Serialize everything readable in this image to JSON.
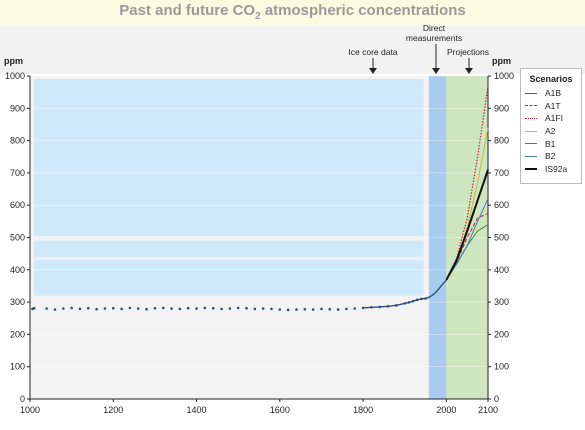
{
  "title": {
    "main": "Past and future CO",
    "sub": "2",
    "rest": " atmospheric concentrations"
  },
  "annotations": {
    "ice_core": "Ice core data",
    "direct_1": "Direct",
    "direct_2": "measurements",
    "projections": "Projections"
  },
  "unit_left": "ppm",
  "unit_right": "ppm",
  "legend": {
    "title": "Scenarios",
    "items": [
      {
        "label": "A1B",
        "color": "#6b5a2a",
        "style": "solid",
        "width": 1
      },
      {
        "label": "A1T",
        "color": "#c1272d",
        "style": "dashed",
        "width": 1
      },
      {
        "label": "A1FI",
        "color": "#c1272d",
        "style": "dotted",
        "width": 1.2
      },
      {
        "label": "A2",
        "color": "#d4b43a",
        "style": "solid",
        "width": 1
      },
      {
        "label": "B1",
        "color": "#3f8a3f",
        "style": "solid",
        "width": 1
      },
      {
        "label": "B2",
        "color": "#4a7ab5",
        "style": "solid",
        "width": 1
      },
      {
        "label": "IS92a",
        "color": "#111111",
        "style": "solid",
        "width": 2
      }
    ]
  },
  "colors": {
    "ice_region": "#cfe9fb",
    "direct_region": "#a9cbef",
    "projection_region": "#cde6bf",
    "observed_points": "#2d4f7c"
  },
  "chart_data": {
    "type": "line",
    "title": "Past and future CO2 atmospheric concentrations",
    "xlabel": "",
    "ylabel": "ppm",
    "xlim": [
      1000,
      2100
    ],
    "ylim": [
      0,
      1000
    ],
    "x_ticks": [
      1000,
      1200,
      1400,
      1600,
      1800,
      2000,
      2100
    ],
    "y_ticks": [
      0,
      100,
      200,
      300,
      400,
      500,
      600,
      700,
      800,
      900,
      1000
    ],
    "regions": [
      {
        "label": "Ice core data",
        "x": [
          1000,
          1955
        ]
      },
      {
        "label": "Direct measurements",
        "x": [
          1958,
          2000
        ]
      },
      {
        "label": "Projections",
        "x": [
          2000,
          2100
        ]
      }
    ],
    "observed": {
      "x": [
        1006,
        1010,
        1040,
        1060,
        1080,
        1100,
        1120,
        1140,
        1160,
        1180,
        1200,
        1220,
        1240,
        1260,
        1280,
        1300,
        1320,
        1340,
        1360,
        1380,
        1400,
        1420,
        1440,
        1460,
        1480,
        1500,
        1520,
        1540,
        1560,
        1580,
        1600,
        1620,
        1640,
        1660,
        1680,
        1700,
        1720,
        1740,
        1760,
        1780,
        1800,
        1820,
        1840,
        1860,
        1880,
        1900,
        1910,
        1920,
        1930,
        1940,
        1950,
        1958,
        1965,
        1970,
        1975,
        1980,
        1985,
        1990,
        1995,
        2000
      ],
      "y": [
        279,
        281,
        280,
        277,
        280,
        282,
        279,
        281,
        278,
        280,
        281,
        279,
        282,
        280,
        278,
        281,
        282,
        280,
        279,
        281,
        280,
        282,
        281,
        279,
        280,
        282,
        281,
        279,
        280,
        279,
        277,
        276,
        277,
        278,
        277,
        279,
        278,
        277,
        279,
        280,
        282,
        284,
        285,
        287,
        290,
        296,
        299,
        303,
        307,
        310,
        311,
        315,
        320,
        325,
        331,
        338,
        346,
        354,
        361,
        369
      ]
    },
    "series": [
      {
        "name": "A1B",
        "x": [
          2000,
          2025,
          2050,
          2075,
          2100
        ],
        "values": [
          369,
          431,
          527,
          617,
          703
        ]
      },
      {
        "name": "A1T",
        "x": [
          2000,
          2025,
          2050,
          2075,
          2100
        ],
        "values": [
          369,
          425,
          500,
          560,
          575
        ]
      },
      {
        "name": "A1FI",
        "x": [
          2000,
          2025,
          2050,
          2075,
          2100
        ],
        "values": [
          369,
          438,
          560,
          750,
          970
        ]
      },
      {
        "name": "A2",
        "x": [
          2000,
          2025,
          2050,
          2075,
          2100
        ],
        "values": [
          369,
          430,
          530,
          670,
          840
        ]
      },
      {
        "name": "B1",
        "x": [
          2000,
          2025,
          2050,
          2075,
          2100
        ],
        "values": [
          369,
          420,
          475,
          520,
          540
        ]
      },
      {
        "name": "B2",
        "x": [
          2000,
          2025,
          2050,
          2075,
          2100
        ],
        "values": [
          369,
          418,
          475,
          550,
          620
        ]
      },
      {
        "name": "IS92a",
        "x": [
          2000,
          2025,
          2050,
          2075,
          2100
        ],
        "values": [
          369,
          430,
          520,
          615,
          710
        ]
      }
    ]
  }
}
